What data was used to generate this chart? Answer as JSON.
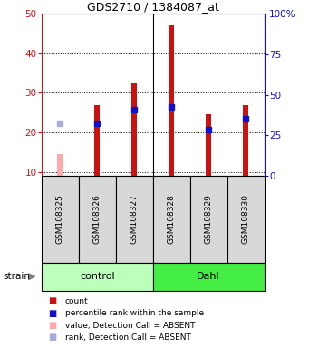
{
  "title": "GDS2710 / 1384087_at",
  "samples": [
    "GSM108325",
    "GSM108326",
    "GSM108327",
    "GSM108328",
    "GSM108329",
    "GSM108330"
  ],
  "groups": [
    "control",
    "control",
    "control",
    "Dahl",
    "Dahl",
    "Dahl"
  ],
  "red_values": [
    null,
    26.8,
    32.5,
    47.0,
    24.5,
    27.0
  ],
  "blue_values": [
    null,
    22.3,
    25.8,
    26.5,
    20.8,
    23.5
  ],
  "pink_value": 14.5,
  "lavender_value": 22.2,
  "absent_sample_index": 0,
  "ylim_left": [
    9,
    50
  ],
  "ylim_right": [
    0,
    100
  ],
  "yticks_left": [
    10,
    20,
    30,
    40,
    50
  ],
  "yticks_right": [
    0,
    25,
    50,
    75,
    100
  ],
  "yticklabels_right": [
    "0",
    "25",
    "50",
    "75",
    "100%"
  ],
  "bar_bottom": 9,
  "bar_width": 0.15,
  "red_color": "#cc1111",
  "blue_color": "#1111cc",
  "pink_color": "#ffaaaa",
  "lavender_color": "#aaaadd",
  "group_colors": {
    "control": "#bbffbb",
    "Dahl": "#44ee44"
  },
  "bg_color": "#d8d8d8",
  "legend_items": [
    {
      "color": "#cc1111",
      "label": "count"
    },
    {
      "color": "#1111cc",
      "label": "percentile rank within the sample"
    },
    {
      "color": "#ffaaaa",
      "label": "value, Detection Call = ABSENT"
    },
    {
      "color": "#aaaadd",
      "label": "rank, Detection Call = ABSENT"
    }
  ]
}
